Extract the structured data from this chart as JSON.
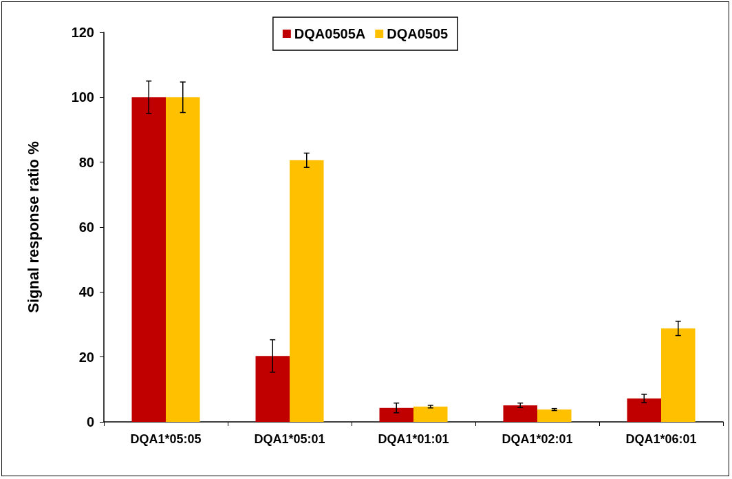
{
  "chart_data": {
    "type": "bar",
    "ylabel": "Signal response ratio %",
    "categories": [
      "DQA1*05:05",
      "DQA1*05:01",
      "DQA1*01:01",
      "DQA1*02:01",
      "DQA1*06:01"
    ],
    "series": [
      {
        "name": "DQA0505A",
        "color": "#c00000",
        "values": [
          100,
          20.3,
          4.3,
          5.1,
          7.2
        ],
        "errors": [
          5,
          5,
          1.5,
          0.7,
          1.3
        ]
      },
      {
        "name": "DQA0505",
        "color": "#ffc000",
        "values": [
          100,
          80.6,
          4.7,
          3.8,
          28.8
        ],
        "errors": [
          4.7,
          2.2,
          0.4,
          0.3,
          2.2
        ]
      }
    ],
    "ylim": [
      0,
      120
    ],
    "yticks": [
      0,
      20,
      40,
      60,
      80,
      100,
      120
    ],
    "grid": false,
    "legend": "top"
  }
}
